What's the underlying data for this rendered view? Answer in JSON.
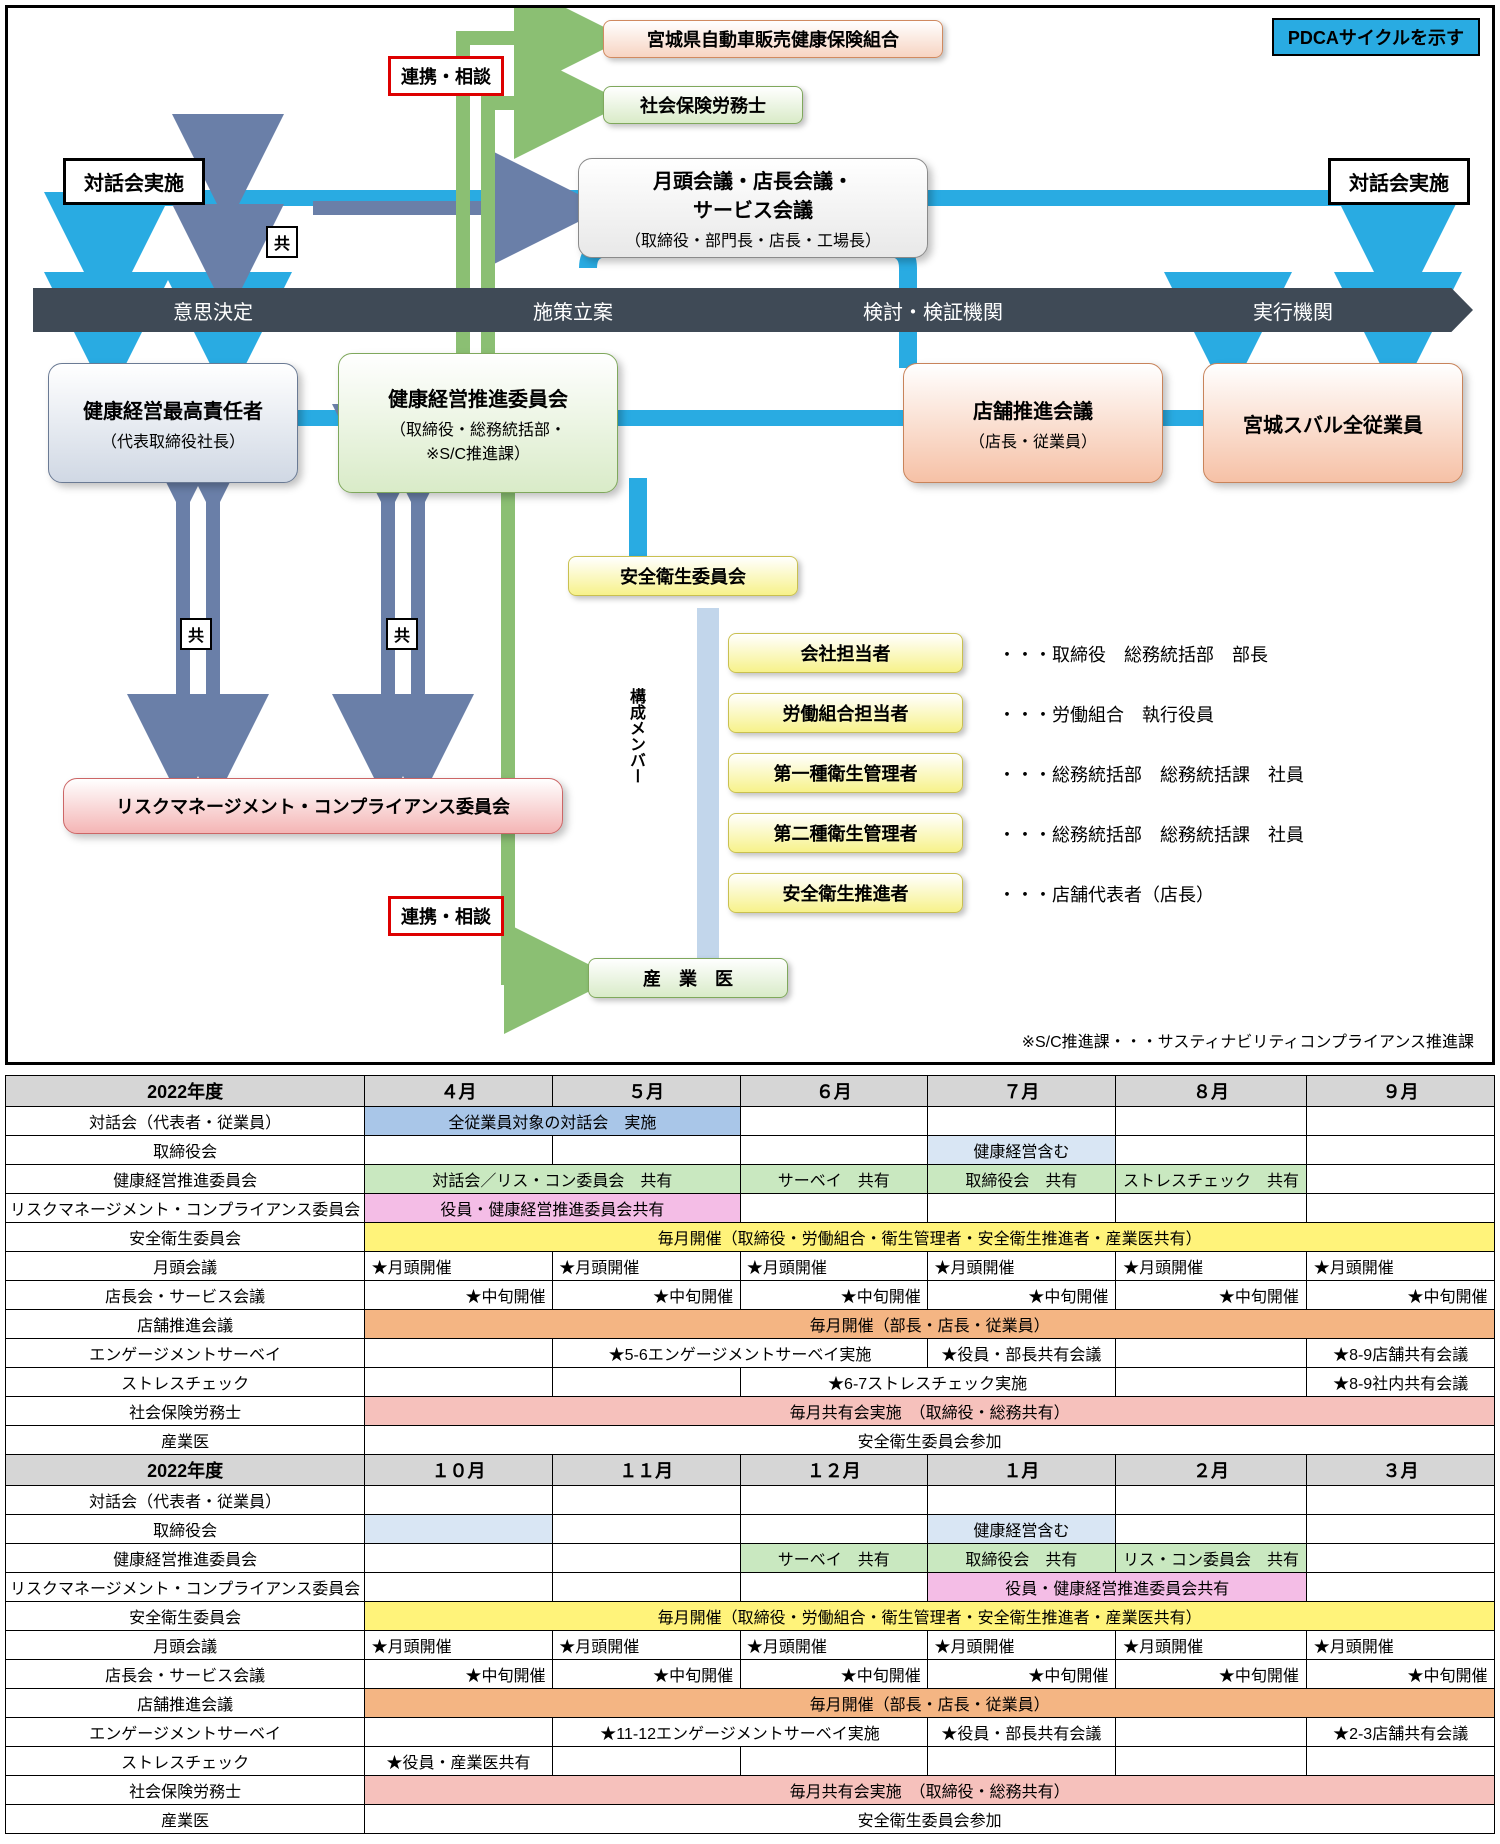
{
  "legend": "PDCAサイクルを示す",
  "phases": [
    "意思決定",
    "施策立案",
    "検討・検証機関",
    "実行機関"
  ],
  "tags": {
    "renkei": "連携・相談",
    "dialog": "対話会実施",
    "share": "共"
  },
  "nodes": {
    "n_hoken": {
      "title": "宮城県自動車販売健康保険組合",
      "sub": "",
      "bg": "#f7d4c2",
      "bd": "#d08a60"
    },
    "n_sharoshi": {
      "title": "社会保険労務士",
      "sub": "",
      "bg": "#d9ebc8",
      "bd": "#7fa85c"
    },
    "n_gekkou": {
      "title": "月頭会議・店長会議・\nサービス会議",
      "sub": "（取締役・部門長・店長・工場長）",
      "bg": "#e8e8e8",
      "bd": "#8a8a8a"
    },
    "n_ceo": {
      "title": "健康経営最高責任者",
      "sub": "（代表取締役社長）",
      "bg": "#d0d8e4",
      "bd": "#6a7a94"
    },
    "n_suisin": {
      "title": "健康経営推進委員会",
      "sub": "（取締役・総務統括部・\n※S/C推進課）",
      "bg": "#d9ebc8",
      "bd": "#7fa85c"
    },
    "n_tenpo": {
      "title": "店舗推進会議",
      "sub": "（店長・従業員）",
      "bg": "#f6c1a6",
      "bd": "#c8835a"
    },
    "n_all": {
      "title": "宮城スバル全従業員",
      "sub": "",
      "bg": "#f6c1a6",
      "bd": "#c8835a"
    },
    "n_risk": {
      "title": "リスクマネージメント・コンプライアンス委員会",
      "sub": "",
      "bg": "#f4b5b5",
      "bd": "#cc6666"
    },
    "n_anzen": {
      "title": "安全衛生委員会",
      "sub": "",
      "bg": "#f7f28a",
      "bd": "#c9c050"
    },
    "n_sangyoi": {
      "title": "産　業　医",
      "sub": "",
      "bg": "#d9ebc8",
      "bd": "#7fa85c"
    },
    "members": [
      {
        "label": "会社担当者",
        "desc": "・・・取締役　総務統括部　部長"
      },
      {
        "label": "労働組合担当者",
        "desc": "・・・労働組合　執行役員"
      },
      {
        "label": "第一種衛生管理者",
        "desc": "・・・総務統括部　総務統括課　社員"
      },
      {
        "label": "第二種衛生管理者",
        "desc": "・・・総務統括部　総務統括課　社員"
      },
      {
        "label": "安全衛生推進者",
        "desc": "・・・店舗代表者（店長）"
      }
    ],
    "member_heading": "構成メンバー"
  },
  "footnote": "※S/C推進課・・・サスティナビリティコンプライアンス推進課",
  "colors": {
    "arrow_blue": "#29abe2",
    "arrow_slate": "#6a7fa8",
    "arrow_green": "#8bbf73",
    "arrow_lblue": "#c2d6eb"
  },
  "schedule": {
    "year": "2022年度",
    "months1": [
      "４月",
      "５月",
      "６月",
      "７月",
      "８月",
      "９月"
    ],
    "months2": [
      "１０月",
      "１１月",
      "１２月",
      "１月",
      "２月",
      "３月"
    ],
    "rows": [
      "対話会（代表者・従業員）",
      "取締役会",
      "健康経営推進委員会",
      "リスクマネージメント・コンプライアンス委員会",
      "安全衛生委員会",
      "月頭会議",
      "店長会・サービス会議",
      "店舗推進会議",
      "エンゲージメントサーベイ",
      "ストレスチェック",
      "社会保険労務士",
      "産業医"
    ],
    "text": {
      "taiwa": "全従業員対象の対話会　実施",
      "kenkou": "健康経営含む",
      "t_apr": "対話会／リス・コン委員会　共有",
      "t_jun": "サーベイ　共有",
      "t_jul": "取締役会　共有",
      "t_aug": "ストレスチェック　共有",
      "rmc": "役員・健康経営推進委員会共有",
      "anzen": "毎月開催（取締役・労働組合・衛生管理者・安全衛生推進者・産業医共有）",
      "gekkou": "★月頭開催",
      "chujun": "★中旬開催",
      "tenpo": "毎月開催（部長・店長・従業員）",
      "eng56": "★5-6エンゲージメントサーベイ実施",
      "eng_yb": "★役員・部長共有会議",
      "eng89": "★8-9店舗共有会議",
      "st67": "★6-7ストレスチェック実施",
      "st89": "★8-9社内共有会議",
      "sharoshi": "毎月共有会実施　（取締役・総務共有）",
      "sangyoi": "安全衛生委員会参加",
      "t2_dec": "サーベイ　共有",
      "t2_jan": "取締役会　共有",
      "t2_feb": "リス・コン委員会　共有",
      "eng1112": "★11-12エンゲージメントサーベイ実施",
      "eng23": "★2-3店舗共有会議",
      "st_oct": "★役員・産業医共有"
    }
  }
}
